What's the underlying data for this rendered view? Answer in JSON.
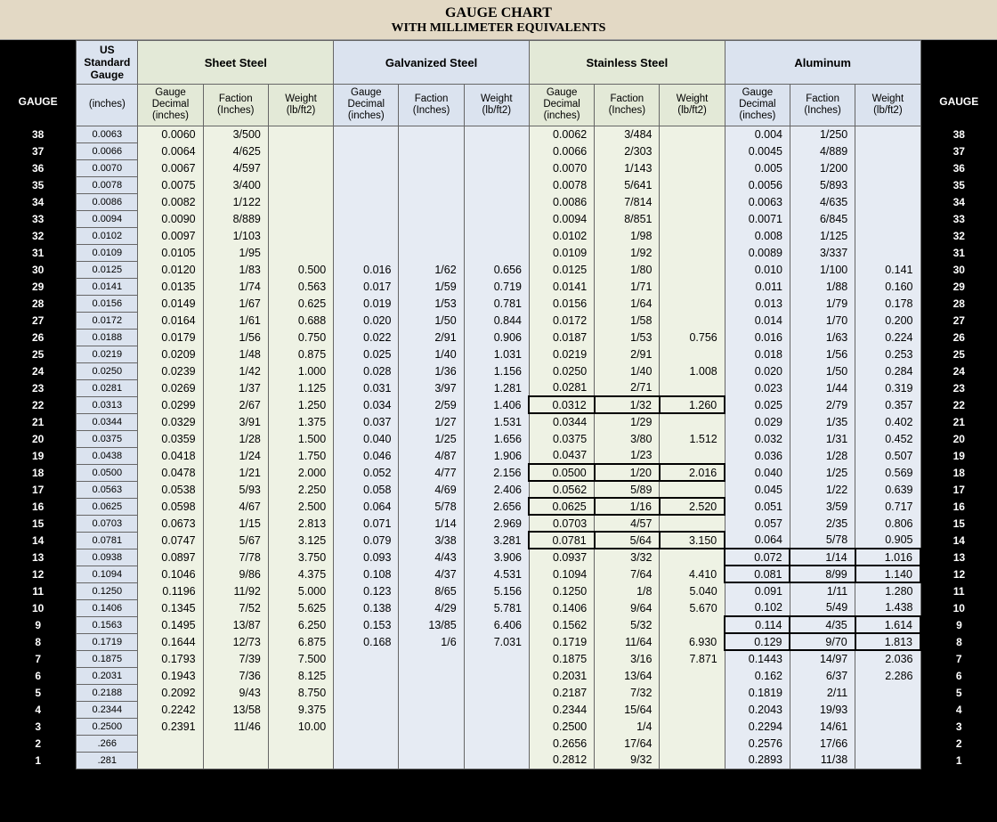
{
  "title": {
    "line1": "GAUGE CHART",
    "line2": "WITH MILLIMETER EQUIVALENTS"
  },
  "sideHeader": "GAUGE",
  "groupHeaders": {
    "usStandard": "US Standard Gauge",
    "sheetSteel": "Sheet Steel",
    "galvanized": "Galvanized Steel",
    "stainless": "Stainless Steel",
    "aluminum": "Aluminum"
  },
  "colHeaders": {
    "usInches": "(inches)",
    "gaugeDecimal": "Gauge\nDecimal\n(inches)",
    "fraction": "Faction\n(Inches)",
    "weight": "Weight\n(lb/ft2)"
  },
  "colors": {
    "banner": "#e3d9c5",
    "blue": "#dbe3ef",
    "green": "#e3e9d7",
    "greenBody": "#eef2e4",
    "blueBody": "#e6ebf3",
    "border": "#666666",
    "black": "#000000",
    "white": "#ffffff"
  },
  "groupBodyColors": [
    "#eef2e4",
    "#e6ebf3",
    "#eef2e4",
    "#e6ebf3"
  ],
  "rows": [
    {
      "g": 38,
      "us": "0.0063",
      "m": [
        [
          "0.0060",
          "3/500",
          ""
        ],
        [
          "",
          "",
          ""
        ],
        [
          "0.0062",
          "3/484",
          ""
        ],
        [
          "0.004",
          "1/250",
          ""
        ]
      ]
    },
    {
      "g": 37,
      "us": "0.0066",
      "m": [
        [
          "0.0064",
          "4/625",
          ""
        ],
        [
          "",
          "",
          ""
        ],
        [
          "0.0066",
          "2/303",
          ""
        ],
        [
          "0.0045",
          "4/889",
          ""
        ]
      ]
    },
    {
      "g": 36,
      "us": "0.0070",
      "m": [
        [
          "0.0067",
          "4/597",
          ""
        ],
        [
          "",
          "",
          ""
        ],
        [
          "0.0070",
          "1/143",
          ""
        ],
        [
          "0.005",
          "1/200",
          ""
        ]
      ]
    },
    {
      "g": 35,
      "us": "0.0078",
      "m": [
        [
          "0.0075",
          "3/400",
          ""
        ],
        [
          "",
          "",
          ""
        ],
        [
          "0.0078",
          "5/641",
          ""
        ],
        [
          "0.0056",
          "5/893",
          ""
        ]
      ]
    },
    {
      "g": 34,
      "us": "0.0086",
      "m": [
        [
          "0.0082",
          "1/122",
          ""
        ],
        [
          "",
          "",
          ""
        ],
        [
          "0.0086",
          "7/814",
          ""
        ],
        [
          "0.0063",
          "4/635",
          ""
        ]
      ]
    },
    {
      "g": 33,
      "us": "0.0094",
      "m": [
        [
          "0.0090",
          "8/889",
          ""
        ],
        [
          "",
          "",
          ""
        ],
        [
          "0.0094",
          "8/851",
          ""
        ],
        [
          "0.0071",
          "6/845",
          ""
        ]
      ]
    },
    {
      "g": 32,
      "us": "0.0102",
      "m": [
        [
          "0.0097",
          "1/103",
          ""
        ],
        [
          "",
          "",
          ""
        ],
        [
          "0.0102",
          "1/98",
          ""
        ],
        [
          "0.008",
          "1/125",
          ""
        ]
      ]
    },
    {
      "g": 31,
      "us": "0.0109",
      "m": [
        [
          "0.0105",
          "1/95",
          ""
        ],
        [
          "",
          "",
          ""
        ],
        [
          "0.0109",
          "1/92",
          ""
        ],
        [
          "0.0089",
          "3/337",
          ""
        ]
      ]
    },
    {
      "g": 30,
      "us": "0.0125",
      "m": [
        [
          "0.0120",
          "1/83",
          "0.500"
        ],
        [
          "0.016",
          "1/62",
          "0.656"
        ],
        [
          "0.0125",
          "1/80",
          ""
        ],
        [
          "0.010",
          "1/100",
          "0.141"
        ]
      ]
    },
    {
      "g": 29,
      "us": "0.0141",
      "m": [
        [
          "0.0135",
          "1/74",
          "0.563"
        ],
        [
          "0.017",
          "1/59",
          "0.719"
        ],
        [
          "0.0141",
          "1/71",
          ""
        ],
        [
          "0.011",
          "1/88",
          "0.160"
        ]
      ]
    },
    {
      "g": 28,
      "us": "0.0156",
      "m": [
        [
          "0.0149",
          "1/67",
          "0.625"
        ],
        [
          "0.019",
          "1/53",
          "0.781"
        ],
        [
          "0.0156",
          "1/64",
          ""
        ],
        [
          "0.013",
          "1/79",
          "0.178"
        ]
      ]
    },
    {
      "g": 27,
      "us": "0.0172",
      "m": [
        [
          "0.0164",
          "1/61",
          "0.688"
        ],
        [
          "0.020",
          "1/50",
          "0.844"
        ],
        [
          "0.0172",
          "1/58",
          ""
        ],
        [
          "0.014",
          "1/70",
          "0.200"
        ]
      ]
    },
    {
      "g": 26,
      "us": "0.0188",
      "m": [
        [
          "0.0179",
          "1/56",
          "0.750"
        ],
        [
          "0.022",
          "2/91",
          "0.906"
        ],
        [
          "0.0187",
          "1/53",
          "0.756"
        ],
        [
          "0.016",
          "1/63",
          "0.224"
        ]
      ]
    },
    {
      "g": 25,
      "us": "0.0219",
      "m": [
        [
          "0.0209",
          "1/48",
          "0.875"
        ],
        [
          "0.025",
          "1/40",
          "1.031"
        ],
        [
          "0.0219",
          "2/91",
          ""
        ],
        [
          "0.018",
          "1/56",
          "0.253"
        ]
      ]
    },
    {
      "g": 24,
      "us": "0.0250",
      "m": [
        [
          "0.0239",
          "1/42",
          "1.000"
        ],
        [
          "0.028",
          "1/36",
          "1.156"
        ],
        [
          "0.0250",
          "1/40",
          "1.008"
        ],
        [
          "0.020",
          "1/50",
          "0.284"
        ]
      ]
    },
    {
      "g": 23,
      "us": "0.0281",
      "m": [
        [
          "0.0269",
          "1/37",
          "1.125"
        ],
        [
          "0.031",
          "3/97",
          "1.281"
        ],
        [
          "0.0281",
          "2/71",
          ""
        ],
        [
          "0.023",
          "1/44",
          "0.319"
        ]
      ]
    },
    {
      "g": 22,
      "us": "0.0313",
      "m": [
        [
          "0.0299",
          "2/67",
          "1.250"
        ],
        [
          "0.034",
          "2/59",
          "1.406"
        ],
        [
          "0.0312",
          "1/32",
          "1.260"
        ],
        [
          "0.025",
          "2/79",
          "0.357"
        ]
      ],
      "box": [
        2
      ]
    },
    {
      "g": 21,
      "us": "0.0344",
      "m": [
        [
          "0.0329",
          "3/91",
          "1.375"
        ],
        [
          "0.037",
          "1/27",
          "1.531"
        ],
        [
          "0.0344",
          "1/29",
          ""
        ],
        [
          "0.029",
          "1/35",
          "0.402"
        ]
      ]
    },
    {
      "g": 20,
      "us": "0.0375",
      "m": [
        [
          "0.0359",
          "1/28",
          "1.500"
        ],
        [
          "0.040",
          "1/25",
          "1.656"
        ],
        [
          "0.0375",
          "3/80",
          "1.512"
        ],
        [
          "0.032",
          "1/31",
          "0.452"
        ]
      ]
    },
    {
      "g": 19,
      "us": "0.0438",
      "m": [
        [
          "0.0418",
          "1/24",
          "1.750"
        ],
        [
          "0.046",
          "4/87",
          "1.906"
        ],
        [
          "0.0437",
          "1/23",
          ""
        ],
        [
          "0.036",
          "1/28",
          "0.507"
        ]
      ]
    },
    {
      "g": 18,
      "us": "0.0500",
      "m": [
        [
          "0.0478",
          "1/21",
          "2.000"
        ],
        [
          "0.052",
          "4/77",
          "2.156"
        ],
        [
          "0.0500",
          "1/20",
          "2.016"
        ],
        [
          "0.040",
          "1/25",
          "0.569"
        ]
      ],
      "box": [
        2
      ]
    },
    {
      "g": 17,
      "us": "0.0563",
      "m": [
        [
          "0.0538",
          "5/93",
          "2.250"
        ],
        [
          "0.058",
          "4/69",
          "2.406"
        ],
        [
          "0.0562",
          "5/89",
          ""
        ],
        [
          "0.045",
          "1/22",
          "0.639"
        ]
      ]
    },
    {
      "g": 16,
      "us": "0.0625",
      "m": [
        [
          "0.0598",
          "4/67",
          "2.500"
        ],
        [
          "0.064",
          "5/78",
          "2.656"
        ],
        [
          "0.0625",
          "1/16",
          "2.520"
        ],
        [
          "0.051",
          "3/59",
          "0.717"
        ]
      ],
      "box": [
        2
      ]
    },
    {
      "g": 15,
      "us": "0.0703",
      "m": [
        [
          "0.0673",
          "1/15",
          "2.813"
        ],
        [
          "0.071",
          "1/14",
          "2.969"
        ],
        [
          "0.0703",
          "4/57",
          ""
        ],
        [
          "0.057",
          "2/35",
          "0.806"
        ]
      ]
    },
    {
      "g": 14,
      "us": "0.0781",
      "m": [
        [
          "0.0747",
          "5/67",
          "3.125"
        ],
        [
          "0.079",
          "3/38",
          "3.281"
        ],
        [
          "0.0781",
          "5/64",
          "3.150"
        ],
        [
          "0.064",
          "5/78",
          "0.905"
        ]
      ],
      "box": [
        2
      ]
    },
    {
      "g": 13,
      "us": "0.0938",
      "m": [
        [
          "0.0897",
          "7/78",
          "3.750"
        ],
        [
          "0.093",
          "4/43",
          "3.906"
        ],
        [
          "0.0937",
          "3/32",
          ""
        ],
        [
          "0.072",
          "1/14",
          "1.016"
        ]
      ],
      "box": [
        3
      ]
    },
    {
      "g": 12,
      "us": "0.1094",
      "m": [
        [
          "0.1046",
          "9/86",
          "4.375"
        ],
        [
          "0.108",
          "4/37",
          "4.531"
        ],
        [
          "0.1094",
          "7/64",
          "4.410"
        ],
        [
          "0.081",
          "8/99",
          "1.140"
        ]
      ],
      "box": [
        3
      ]
    },
    {
      "g": 11,
      "us": "0.1250",
      "m": [
        [
          "0.1196",
          "11/92",
          "5.000"
        ],
        [
          "0.123",
          "8/65",
          "5.156"
        ],
        [
          "0.1250",
          "1/8",
          "5.040"
        ],
        [
          "0.091",
          "1/11",
          "1.280"
        ]
      ]
    },
    {
      "g": 10,
      "us": "0.1406",
      "m": [
        [
          "0.1345",
          "7/52",
          "5.625"
        ],
        [
          "0.138",
          "4/29",
          "5.781"
        ],
        [
          "0.1406",
          "9/64",
          "5.670"
        ],
        [
          "0.102",
          "5/49",
          "1.438"
        ]
      ]
    },
    {
      "g": 9,
      "us": "0.1563",
      "m": [
        [
          "0.1495",
          "13/87",
          "6.250"
        ],
        [
          "0.153",
          "13/85",
          "6.406"
        ],
        [
          "0.1562",
          "5/32",
          ""
        ],
        [
          "0.114",
          "4/35",
          "1.614"
        ]
      ],
      "box": [
        3
      ]
    },
    {
      "g": 8,
      "us": "0.1719",
      "m": [
        [
          "0.1644",
          "12/73",
          "6.875"
        ],
        [
          "0.168",
          "1/6",
          "7.031"
        ],
        [
          "0.1719",
          "11/64",
          "6.930"
        ],
        [
          "0.129",
          "9/70",
          "1.813"
        ]
      ],
      "box": [
        3
      ]
    },
    {
      "g": 7,
      "us": "0.1875",
      "m": [
        [
          "0.1793",
          "7/39",
          "7.500"
        ],
        [
          "",
          "",
          ""
        ],
        [
          "0.1875",
          "3/16",
          "7.871"
        ],
        [
          "0.1443",
          "14/97",
          "2.036"
        ]
      ]
    },
    {
      "g": 6,
      "us": "0.2031",
      "m": [
        [
          "0.1943",
          "7/36",
          "8.125"
        ],
        [
          "",
          "",
          ""
        ],
        [
          "0.2031",
          "13/64",
          ""
        ],
        [
          "0.162",
          "6/37",
          "2.286"
        ]
      ]
    },
    {
      "g": 5,
      "us": "0.2188",
      "m": [
        [
          "0.2092",
          "9/43",
          "8.750"
        ],
        [
          "",
          "",
          ""
        ],
        [
          "0.2187",
          "7/32",
          ""
        ],
        [
          "0.1819",
          "2/11",
          ""
        ]
      ]
    },
    {
      "g": 4,
      "us": "0.2344",
      "m": [
        [
          "0.2242",
          "13/58",
          "9.375"
        ],
        [
          "",
          "",
          ""
        ],
        [
          "0.2344",
          "15/64",
          ""
        ],
        [
          "0.2043",
          "19/93",
          ""
        ]
      ]
    },
    {
      "g": 3,
      "us": "0.2500",
      "m": [
        [
          "0.2391",
          "11/46",
          "10.00"
        ],
        [
          "",
          "",
          ""
        ],
        [
          "0.2500",
          "1/4",
          ""
        ],
        [
          "0.2294",
          "14/61",
          ""
        ]
      ]
    },
    {
      "g": 2,
      "us": ".266",
      "m": [
        [
          "",
          "",
          ""
        ],
        [
          "",
          "",
          ""
        ],
        [
          "0.2656",
          "17/64",
          ""
        ],
        [
          "0.2576",
          "17/66",
          ""
        ]
      ]
    },
    {
      "g": 1,
      "us": ".281",
      "m": [
        [
          "",
          "",
          ""
        ],
        [
          "",
          "",
          ""
        ],
        [
          "0.2812",
          "9/32",
          ""
        ],
        [
          "0.2893",
          "11/38",
          ""
        ]
      ]
    }
  ]
}
